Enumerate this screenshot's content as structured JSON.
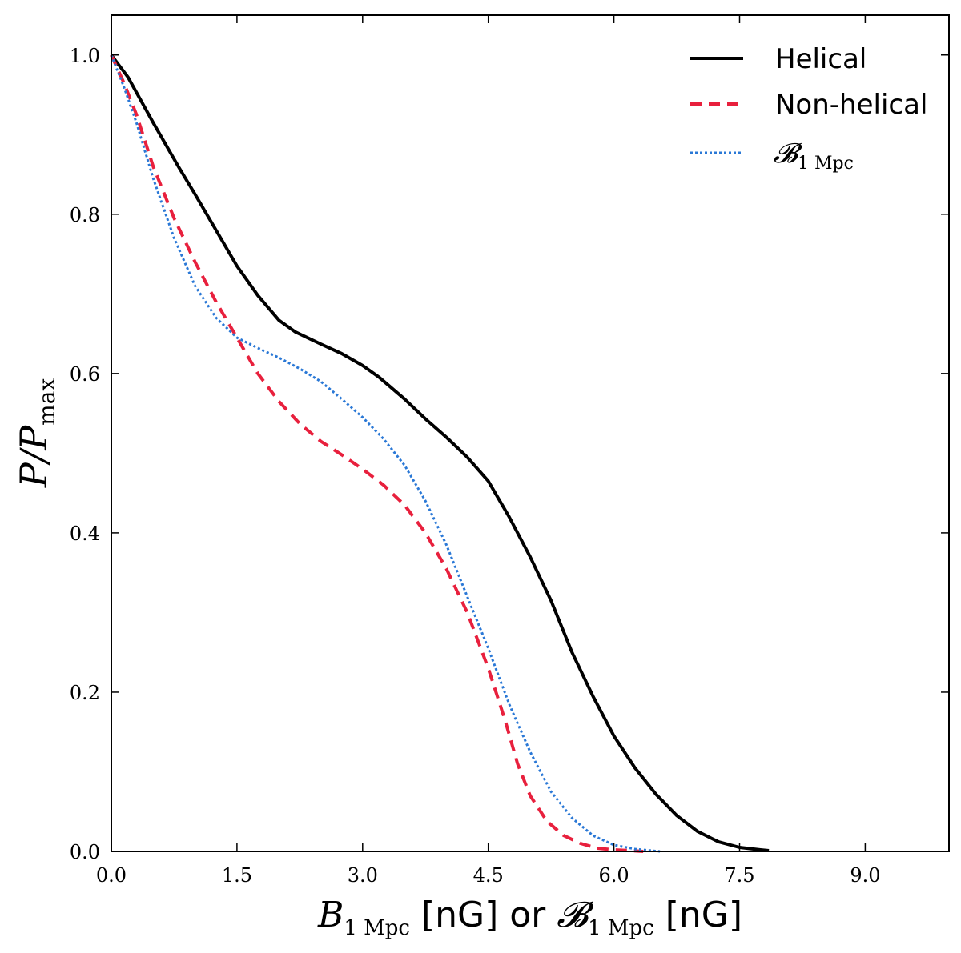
{
  "chart_data": {
    "type": "line",
    "title": "",
    "xlabel": {
      "b": "B",
      "b_sub": "1 Mpc",
      "unit1": " [nG] or ",
      "bcal": "𝓑",
      "bcal_sub": "1 Mpc",
      "unit2": " [nG]"
    },
    "ylabel": {
      "p": "P",
      "slash": "/",
      "p2": "P",
      "sub": "max"
    },
    "xlim": [
      0,
      10
    ],
    "ylim": [
      0,
      1.05
    ],
    "xticks": [
      0.0,
      1.5,
      3.0,
      4.5,
      6.0,
      7.5,
      9.0
    ],
    "xtick_labels": [
      "0.0",
      "1.5",
      "3.0",
      "4.5",
      "6.0",
      "7.5",
      "9.0"
    ],
    "yticks": [
      0.0,
      0.2,
      0.4,
      0.6,
      0.8,
      1.0
    ],
    "ytick_labels": [
      "0.0",
      "0.2",
      "0.4",
      "0.6",
      "0.8",
      "1.0"
    ],
    "legend_position": "top-right",
    "grid": false,
    "series": [
      {
        "name": "Helical",
        "legend_label": "Helical",
        "color": "#000000",
        "style": "solid",
        "points": [
          [
            0.0,
            1.0
          ],
          [
            0.2,
            0.972
          ],
          [
            0.5,
            0.915
          ],
          [
            0.8,
            0.86
          ],
          [
            1.0,
            0.825
          ],
          [
            1.25,
            0.78
          ],
          [
            1.5,
            0.735
          ],
          [
            1.75,
            0.698
          ],
          [
            2.0,
            0.667
          ],
          [
            2.2,
            0.652
          ],
          [
            2.5,
            0.637
          ],
          [
            2.75,
            0.625
          ],
          [
            3.0,
            0.61
          ],
          [
            3.2,
            0.595
          ],
          [
            3.5,
            0.568
          ],
          [
            3.75,
            0.543
          ],
          [
            4.0,
            0.52
          ],
          [
            4.25,
            0.495
          ],
          [
            4.5,
            0.465
          ],
          [
            4.75,
            0.42
          ],
          [
            5.0,
            0.37
          ],
          [
            5.25,
            0.315
          ],
          [
            5.5,
            0.25
          ],
          [
            5.75,
            0.195
          ],
          [
            6.0,
            0.145
          ],
          [
            6.25,
            0.105
          ],
          [
            6.5,
            0.072
          ],
          [
            6.75,
            0.045
          ],
          [
            7.0,
            0.025
          ],
          [
            7.25,
            0.012
          ],
          [
            7.5,
            0.005
          ],
          [
            7.75,
            0.002
          ],
          [
            7.85,
            0.001
          ]
        ]
      },
      {
        "name": "Non-helical",
        "legend_label": "Non-helical",
        "color": "#e8203d",
        "style": "dashed",
        "points": [
          [
            0.0,
            1.0
          ],
          [
            0.15,
            0.965
          ],
          [
            0.3,
            0.925
          ],
          [
            0.5,
            0.86
          ],
          [
            0.75,
            0.795
          ],
          [
            1.0,
            0.74
          ],
          [
            1.25,
            0.69
          ],
          [
            1.5,
            0.645
          ],
          [
            1.75,
            0.6
          ],
          [
            2.0,
            0.565
          ],
          [
            2.25,
            0.537
          ],
          [
            2.5,
            0.515
          ],
          [
            2.75,
            0.498
          ],
          [
            3.0,
            0.48
          ],
          [
            3.25,
            0.46
          ],
          [
            3.5,
            0.435
          ],
          [
            3.75,
            0.4
          ],
          [
            4.0,
            0.355
          ],
          [
            4.25,
            0.3
          ],
          [
            4.5,
            0.23
          ],
          [
            4.7,
            0.165
          ],
          [
            4.85,
            0.11
          ],
          [
            5.0,
            0.07
          ],
          [
            5.2,
            0.038
          ],
          [
            5.4,
            0.02
          ],
          [
            5.6,
            0.01
          ],
          [
            5.8,
            0.004
          ],
          [
            6.0,
            0.002
          ],
          [
            6.2,
            0.001
          ],
          [
            6.35,
            0.0
          ]
        ]
      },
      {
        "name": "B1Mpc",
        "legend_label": "𝓑",
        "legend_sub": "1 Mpc",
        "color": "#2a78d6",
        "style": "dotted",
        "points": [
          [
            0.0,
            1.0
          ],
          [
            0.15,
            0.96
          ],
          [
            0.3,
            0.915
          ],
          [
            0.5,
            0.845
          ],
          [
            0.75,
            0.77
          ],
          [
            1.0,
            0.71
          ],
          [
            1.25,
            0.67
          ],
          [
            1.5,
            0.645
          ],
          [
            1.75,
            0.632
          ],
          [
            2.0,
            0.62
          ],
          [
            2.25,
            0.606
          ],
          [
            2.5,
            0.59
          ],
          [
            2.75,
            0.568
          ],
          [
            3.0,
            0.545
          ],
          [
            3.25,
            0.518
          ],
          [
            3.5,
            0.485
          ],
          [
            3.75,
            0.44
          ],
          [
            4.0,
            0.385
          ],
          [
            4.25,
            0.32
          ],
          [
            4.5,
            0.255
          ],
          [
            4.75,
            0.185
          ],
          [
            5.0,
            0.125
          ],
          [
            5.25,
            0.075
          ],
          [
            5.5,
            0.042
          ],
          [
            5.75,
            0.02
          ],
          [
            6.0,
            0.008
          ],
          [
            6.25,
            0.003
          ],
          [
            6.45,
            0.001
          ],
          [
            6.55,
            0.0
          ]
        ]
      }
    ]
  }
}
